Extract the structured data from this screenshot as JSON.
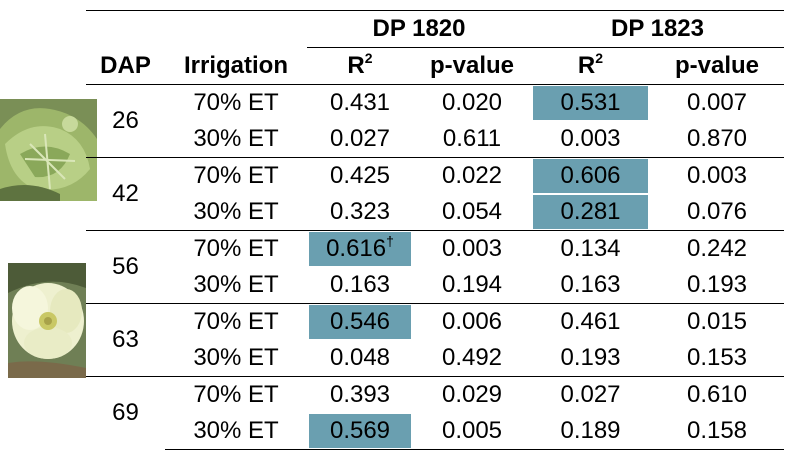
{
  "header": {
    "group1": "DP 1820",
    "group2": "DP 1823",
    "col_dap": "DAP",
    "col_irrigation": "Irrigation",
    "r2_base": "R",
    "r2_exp": "2",
    "pvalue": "p-value"
  },
  "colors": {
    "highlight": "#6a9fb0"
  },
  "groups": [
    {
      "dap": "26",
      "rows": [
        {
          "irr": "70% ET",
          "r1": "0.431",
          "p1": "0.020",
          "r2": "0.531",
          "p2": "0.007"
        },
        {
          "irr": "30% ET",
          "r1": "0.027",
          "p1": "0.611",
          "r2": "0.003",
          "p2": "0.870"
        }
      ]
    },
    {
      "dap": "42",
      "rows": [
        {
          "irr": "70% ET",
          "r1": "0.425",
          "p1": "0.022",
          "r2": "0.606",
          "p2": "0.003"
        },
        {
          "irr": "30% ET",
          "r1": "0.323",
          "p1": "0.054",
          "r2": "0.281",
          "p2": "0.076"
        }
      ]
    },
    {
      "dap": "56",
      "rows": [
        {
          "irr": "70% ET",
          "r1": "0.616",
          "r1_sup": "†",
          "p1": "0.003",
          "r2": "0.134",
          "p2": "0.242"
        },
        {
          "irr": "30% ET",
          "r1": "0.163",
          "p1": "0.194",
          "r2": "0.163",
          "p2": "0.193"
        }
      ]
    },
    {
      "dap": "63",
      "rows": [
        {
          "irr": "70% ET",
          "r1": "0.546",
          "p1": "0.006",
          "r2": "0.461",
          "p2": "0.015"
        },
        {
          "irr": "30% ET",
          "r1": "0.048",
          "p1": "0.492",
          "r2": "0.193",
          "p2": "0.153"
        }
      ]
    },
    {
      "dap": "69",
      "rows": [
        {
          "irr": "70% ET",
          "r1": "0.393",
          "p1": "0.029",
          "r2": "0.027",
          "p2": "0.610"
        },
        {
          "irr": "30% ET",
          "r1": "0.569",
          "p1": "0.005",
          "r2": "0.189",
          "p2": "0.158"
        }
      ]
    }
  ]
}
